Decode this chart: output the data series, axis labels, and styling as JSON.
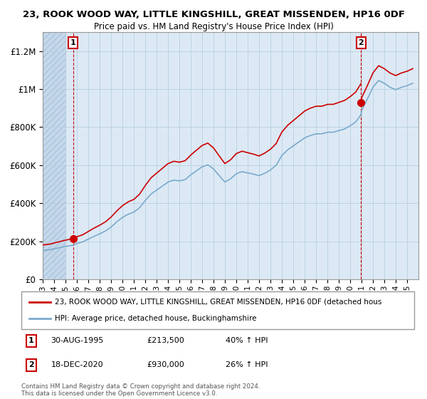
{
  "title": "23, ROOK WOOD WAY, LITTLE KINGSHILL, GREAT MISSENDEN, HP16 0DF",
  "subtitle": "Price paid vs. HM Land Registry's House Price Index (HPI)",
  "red_line_label": "23, ROOK WOOD WAY, LITTLE KINGSHILL, GREAT MISSENDEN, HP16 0DF (detached hous",
  "blue_line_label": "HPI: Average price, detached house, Buckinghamshire",
  "annotation1_date": "30-AUG-1995",
  "annotation1_price": "£213,500",
  "annotation1_hpi": "40% ↑ HPI",
  "annotation2_date": "18-DEC-2020",
  "annotation2_price": "£930,000",
  "annotation2_hpi": "26% ↑ HPI",
  "footnote": "Contains HM Land Registry data © Crown copyright and database right 2024.\nThis data is licensed under the Open Government Licence v3.0.",
  "ylim": [
    0,
    1300000
  ],
  "yticks": [
    0,
    200000,
    400000,
    600000,
    800000,
    1000000,
    1200000
  ],
  "ytick_labels": [
    "£0",
    "£200K",
    "£400K",
    "£600K",
    "£800K",
    "£1M",
    "£1.2M"
  ],
  "red_color": "#cc0000",
  "blue_color": "#7aaacc",
  "bg_plot_color": "#dce9f5",
  "hatch_color": "#c5d8ea",
  "point1_x": 1995.66,
  "point1_y": 213500,
  "point2_x": 2020.96,
  "point2_y": 930000,
  "xmin": 1993,
  "xmax": 2026
}
